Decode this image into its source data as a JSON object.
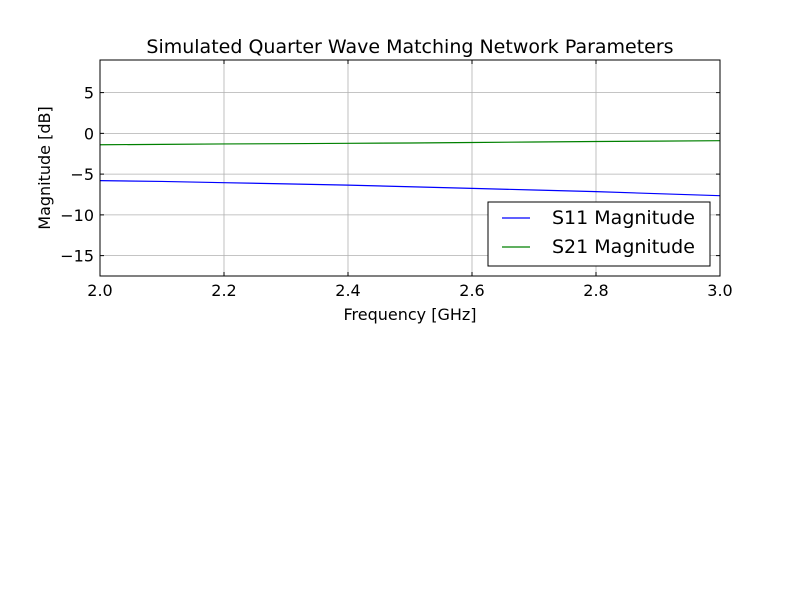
{
  "chart_data": {
    "type": "line",
    "title": "Simulated Quarter Wave Matching Network Parameters",
    "xlabel": "Frequency [GHz]",
    "ylabel": "Magnitude [dB]",
    "xlim": [
      2.0,
      3.0
    ],
    "ylim": [
      -17.5,
      9.0
    ],
    "xticks": [
      {
        "value": 2.0,
        "label": "2.0"
      },
      {
        "value": 2.2,
        "label": "2.2"
      },
      {
        "value": 2.4,
        "label": "2.4"
      },
      {
        "value": 2.6,
        "label": "2.6"
      },
      {
        "value": 2.8,
        "label": "2.8"
      },
      {
        "value": 3.0,
        "label": "3.0"
      }
    ],
    "yticks": [
      {
        "value": 5,
        "label": "5"
      },
      {
        "value": 0,
        "label": "0"
      },
      {
        "value": -5,
        "label": "−5"
      },
      {
        "value": -10,
        "label": "−10"
      },
      {
        "value": -15,
        "label": "−15"
      }
    ],
    "grid": true,
    "legend_position": "lower-right",
    "x": [
      2.0,
      2.1,
      2.2,
      2.3,
      2.4,
      2.5,
      2.6,
      2.7,
      2.8,
      2.9,
      3.0
    ],
    "series": [
      {
        "name": "S11 Magnitude",
        "color": "#0000ff",
        "values": [
          -5.8,
          -5.9,
          -6.05,
          -6.2,
          -6.35,
          -6.55,
          -6.75,
          -6.95,
          -7.15,
          -7.4,
          -7.65
        ]
      },
      {
        "name": "S21 Magnitude",
        "color": "#008000",
        "values": [
          -1.4,
          -1.35,
          -1.3,
          -1.27,
          -1.22,
          -1.18,
          -1.12,
          -1.06,
          -1.0,
          -0.95,
          -0.9
        ]
      }
    ]
  }
}
